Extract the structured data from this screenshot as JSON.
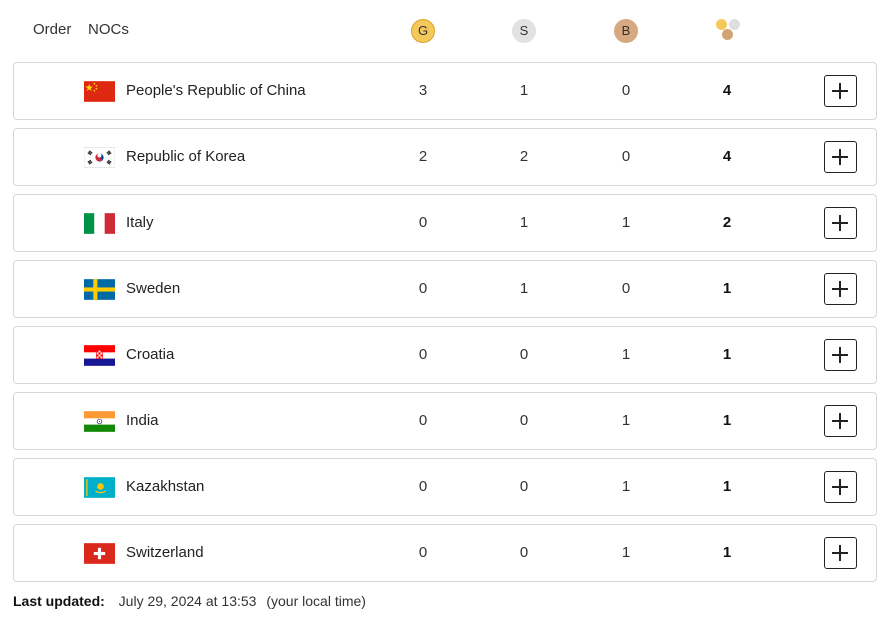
{
  "header": {
    "order_label": "Order",
    "nocs_label": "NOCs",
    "gold_label": "G",
    "silver_label": "S",
    "bronze_label": "B"
  },
  "colors": {
    "gold": "#f4c95a",
    "silver": "#e2e2e2",
    "bronze": "#d7a980"
  },
  "rows": [
    {
      "country": "People's Republic of China",
      "flag": "china-flag",
      "gold": "3",
      "silver": "1",
      "bronze": "0",
      "total": "4"
    },
    {
      "country": "Republic of Korea",
      "flag": "korea-flag",
      "gold": "2",
      "silver": "2",
      "bronze": "0",
      "total": "4"
    },
    {
      "country": "Italy",
      "flag": "italy-flag",
      "gold": "0",
      "silver": "1",
      "bronze": "1",
      "total": "2"
    },
    {
      "country": "Sweden",
      "flag": "sweden-flag",
      "gold": "0",
      "silver": "1",
      "bronze": "0",
      "total": "1"
    },
    {
      "country": "Croatia",
      "flag": "croatia-flag",
      "gold": "0",
      "silver": "0",
      "bronze": "1",
      "total": "1"
    },
    {
      "country": "India",
      "flag": "india-flag",
      "gold": "0",
      "silver": "0",
      "bronze": "1",
      "total": "1"
    },
    {
      "country": "Kazakhstan",
      "flag": "kazakhstan-flag",
      "gold": "0",
      "silver": "0",
      "bronze": "1",
      "total": "1"
    },
    {
      "country": "Switzerland",
      "flag": "switzerland-flag",
      "gold": "0",
      "silver": "0",
      "bronze": "1",
      "total": "1"
    }
  ],
  "footer": {
    "label": "Last updated:",
    "timestamp": "July 29, 2024 at 13:53",
    "note": "(your local time)"
  }
}
